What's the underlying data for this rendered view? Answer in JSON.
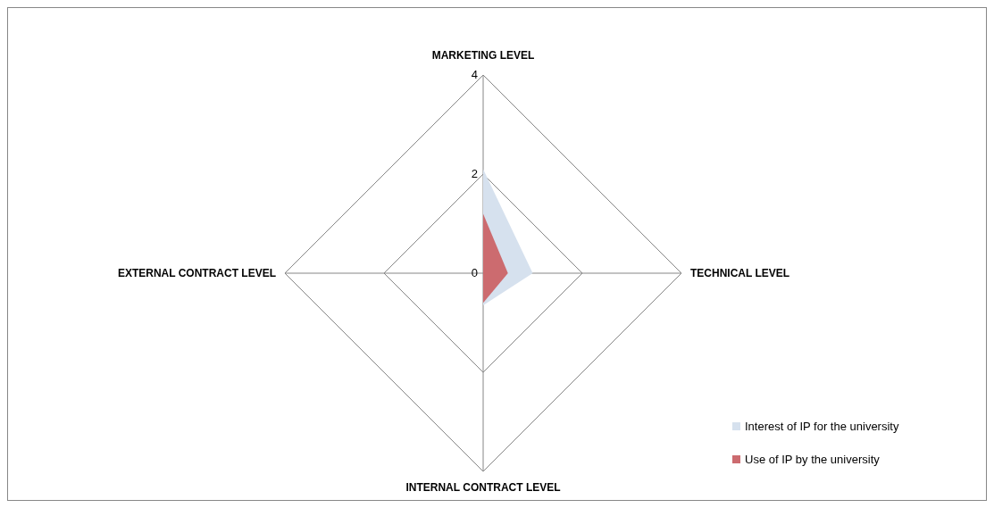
{
  "chart_data": {
    "type": "radar",
    "categories": [
      "MARKETING LEVEL",
      "TECHNICAL LEVEL",
      "INTERNAL CONTRACT LEVEL",
      "EXTERNAL CONTRACT LEVEL"
    ],
    "series": [
      {
        "name": "Interest of IP for the university",
        "color": "#d6e1ee",
        "values": [
          2.1,
          1.0,
          0.65,
          0
        ]
      },
      {
        "name": "Use of IP by the university",
        "color": "#cc6b6f",
        "values": [
          1.2,
          0.5,
          0.6,
          0
        ]
      }
    ],
    "ylim": [
      0,
      4
    ],
    "yticks": [
      0,
      2,
      4
    ],
    "grid": true,
    "legend": "bottom right"
  }
}
